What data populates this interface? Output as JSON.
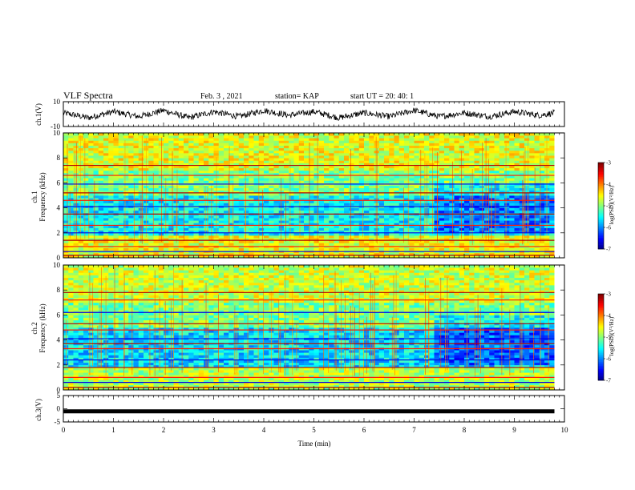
{
  "header": {
    "title": "VLF Spectra",
    "date": "Feb. 3 , 2021",
    "station": "station= KAP",
    "start": "start UT = 20: 40: 1"
  },
  "colors": {
    "jet": [
      "#00007f",
      "#0000ff",
      "#0080ff",
      "#00ffff",
      "#80ff80",
      "#ffff00",
      "#ff8000",
      "#ff0000",
      "#7f0000"
    ],
    "background": "#ffffff",
    "ink": "#000000"
  },
  "chart_data": [
    {
      "type": "line",
      "panel": "ch1-waveform",
      "ylabel": "ch.1(V)",
      "ylim": [
        -10,
        10
      ],
      "yticks": [
        "10",
        "-10"
      ],
      "xlim": [
        0,
        9.8
      ],
      "description_of_series": "noisy oscillating waveform around 0 V, amplitude about 4 V",
      "series": [
        {
          "x": [
            0,
            0.5,
            1.0,
            1.5,
            2.0,
            2.5,
            3.0,
            3.5,
            4.0,
            4.5,
            5.0,
            5.5,
            6.0,
            6.5,
            7.0,
            7.5,
            8.0,
            8.5,
            9.0,
            9.5,
            9.8
          ],
          "values": [
            1,
            -3,
            2,
            -2,
            3,
            -3,
            2,
            -2,
            3,
            -1,
            2,
            -3,
            1,
            -2,
            3,
            -2,
            1,
            -2,
            2,
            -1,
            1
          ]
        }
      ]
    },
    {
      "type": "heatmap",
      "panel": "ch1-spectrogram",
      "ylabel": "ch.1\nFrequency (kHz)",
      "ylim": [
        0,
        10
      ],
      "yticks": [
        "0",
        "2",
        "4",
        "6",
        "8",
        "10"
      ],
      "xlim": [
        0,
        9.8
      ],
      "colorbar": {
        "label": "log(PSD)(V²/Hz)",
        "range": [
          -7,
          -3
        ],
        "ticks": [
          "-3",
          "-4",
          "-5",
          "-6",
          "-7"
        ]
      },
      "regime_change_at_min": 7.4,
      "lines_khz": [
        0.2,
        0.5,
        0.9,
        1.4,
        2.0,
        2.6,
        3.5,
        4.1,
        4.6,
        5.2,
        5.9,
        6.6,
        7.4
      ],
      "background_levels": [
        {
          "from_khz": 0,
          "to_khz": 1.8,
          "log_psd": -4.6
        },
        {
          "from_khz": 1.8,
          "to_khz": 5.0,
          "log_psd": -5.5
        },
        {
          "from_khz": 5.0,
          "to_khz": 7.0,
          "log_psd": -5.0
        },
        {
          "from_khz": 7.0,
          "to_khz": 10,
          "log_psd": -4.6
        }
      ]
    },
    {
      "type": "heatmap",
      "panel": "ch2-spectrogram",
      "ylabel": "ch.2\nFrequency (kHz)",
      "ylim": [
        0,
        10
      ],
      "yticks": [
        "0",
        "2",
        "4",
        "6",
        "8",
        "10"
      ],
      "xlim": [
        0,
        9.8
      ],
      "colorbar": {
        "label": "log(PSD)(V²/Hz)",
        "range": [
          -7,
          -3
        ],
        "ticks": [
          "-3",
          "-4",
          "-5",
          "-6",
          "-7"
        ]
      },
      "regime_change_at_min": 7.4,
      "lines_khz": [
        0.2,
        0.6,
        1.0,
        1.8,
        2.4,
        3.3,
        3.7,
        4.1,
        4.8,
        5.3,
        6.2,
        7.2,
        7.8
      ],
      "background_levels": [
        {
          "from_khz": 0,
          "to_khz": 1.8,
          "log_psd": -4.8
        },
        {
          "from_khz": 1.8,
          "to_khz": 5.0,
          "log_psd": -5.6
        },
        {
          "from_khz": 5.0,
          "to_khz": 7.0,
          "log_psd": -5.0
        },
        {
          "from_khz": 7.0,
          "to_khz": 10,
          "log_psd": -4.7
        }
      ]
    },
    {
      "type": "line",
      "panel": "ch3-trace",
      "ylabel": "ch.3(V)",
      "ylim": [
        -5,
        5
      ],
      "yticks": [
        "5",
        "0",
        "-5"
      ],
      "xlim": [
        0,
        9.8
      ],
      "series": [
        {
          "x": [
            0,
            9.8
          ],
          "values": [
            -1,
            -1
          ]
        }
      ]
    }
  ],
  "xaxis": {
    "label": "Time (min)",
    "ticks": [
      "0",
      "1",
      "2",
      "3",
      "4",
      "5",
      "6",
      "7",
      "8",
      "9",
      "10"
    ],
    "range": [
      0,
      10
    ]
  }
}
